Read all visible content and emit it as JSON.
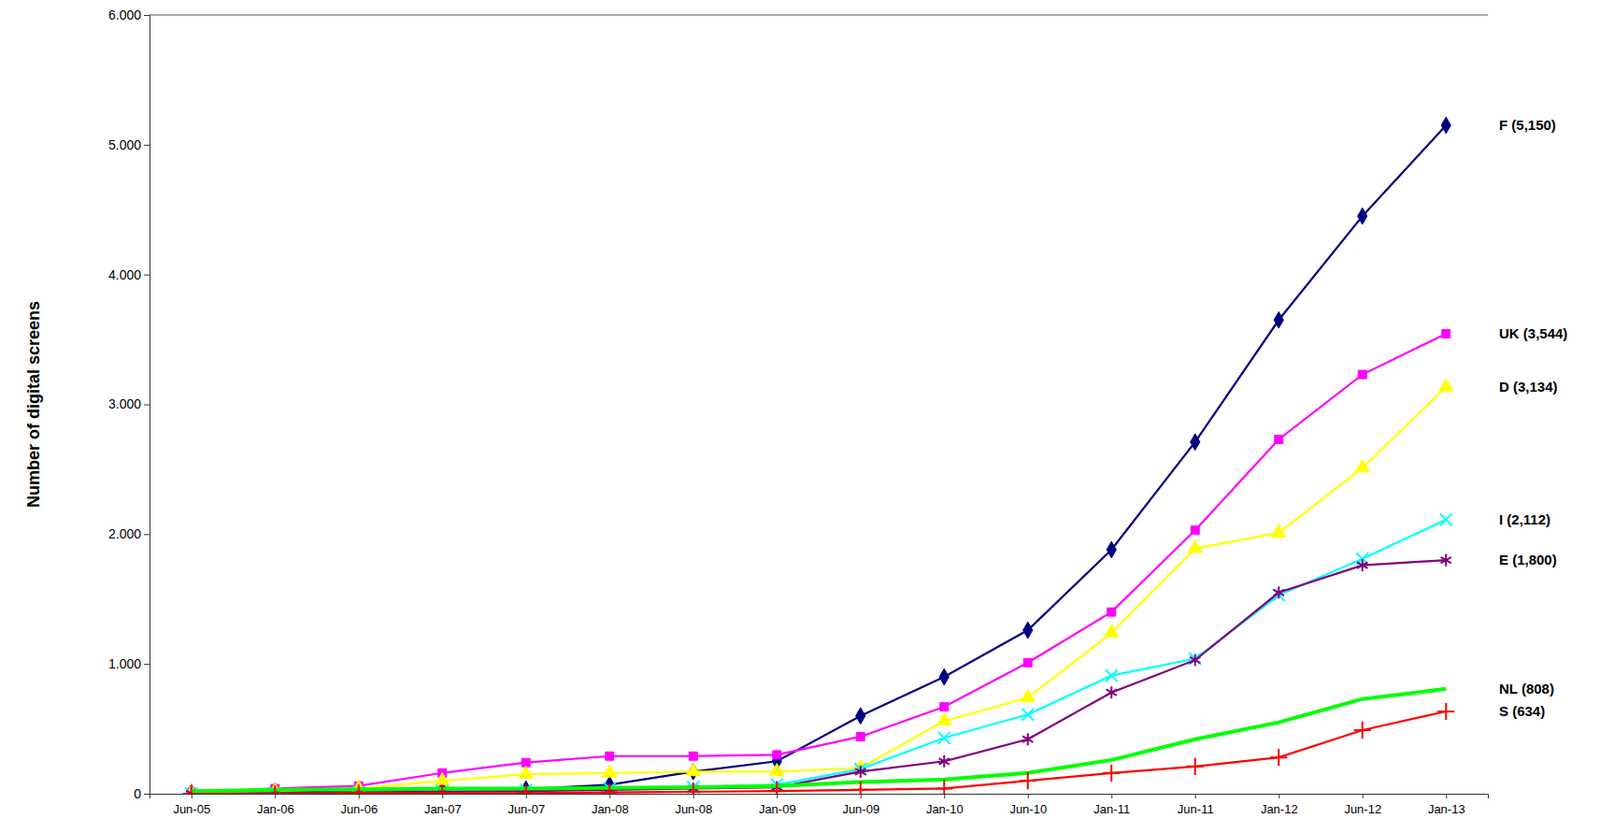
{
  "chart_data": {
    "type": "line",
    "y_label": "Number of digital screens",
    "categories": [
      "Jun-05",
      "Jan-06",
      "Jun-06",
      "Jan-07",
      "Jun-07",
      "Jan-08",
      "Jun-08",
      "Jan-09",
      "Jun-09",
      "Jan-10",
      "Jun-10",
      "Jan-11",
      "Jun-11",
      "Jan-12",
      "Jun-12",
      "Jan-13"
    ],
    "ylim": [
      0,
      6000
    ],
    "yticks": [
      0,
      {
        "value": 1000,
        "label": "1.000"
      },
      {
        "value": 2000,
        "label": "2.000"
      },
      {
        "value": 3000,
        "label": "3.000"
      },
      {
        "value": 4000,
        "label": "4.000"
      },
      {
        "value": 5000,
        "label": "5.000"
      },
      {
        "value": 6000,
        "label": "6.000"
      }
    ],
    "grid": false,
    "series": [
      {
        "name": "F (5,150)",
        "color": "#000080",
        "marker": "diamond",
        "values": [
          10,
          20,
          25,
          30,
          35,
          70,
          170,
          250,
          600,
          900,
          1260,
          1880,
          2710,
          3650,
          4450,
          5150
        ]
      },
      {
        "name": "UK (3,544)",
        "color": "#ff00ff",
        "marker": "square",
        "values": [
          10,
          40,
          60,
          160,
          240,
          290,
          290,
          300,
          440,
          670,
          1010,
          1400,
          2030,
          2730,
          3230,
          3544
        ]
      },
      {
        "name": "D (3,134)",
        "color": "#ffff00",
        "marker": "triangle",
        "values": [
          5,
          20,
          40,
          100,
          150,
          160,
          170,
          170,
          200,
          560,
          740,
          1240,
          1890,
          2010,
          2510,
          3134
        ]
      },
      {
        "name": "I (2,112)",
        "color": "#00ffff",
        "marker": "x",
        "values": [
          0,
          5,
          10,
          20,
          30,
          40,
          50,
          70,
          190,
          430,
          610,
          910,
          1040,
          1530,
          1810,
          2112
        ]
      },
      {
        "name": "E (1,800)",
        "color": "#800080",
        "marker": "asterisk",
        "values": [
          0,
          5,
          10,
          15,
          20,
          30,
          40,
          50,
          170,
          250,
          420,
          780,
          1030,
          1550,
          1760,
          1800
        ]
      },
      {
        "name": "NL (808)",
        "color": "#00ff00",
        "marker": "none",
        "values": [
          20,
          30,
          35,
          40,
          40,
          45,
          50,
          60,
          90,
          110,
          160,
          260,
          420,
          550,
          730,
          808
        ]
      },
      {
        "name": "S (634)",
        "color": "#ff0000",
        "marker": "plus",
        "values": [
          0,
          0,
          5,
          5,
          5,
          10,
          15,
          20,
          30,
          40,
          100,
          160,
          210,
          280,
          490,
          634
        ]
      }
    ]
  }
}
